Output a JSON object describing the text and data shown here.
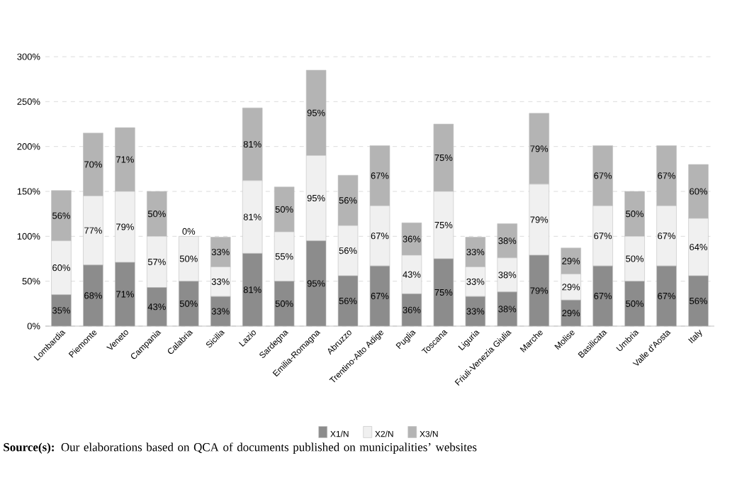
{
  "chart_data": {
    "type": "bar",
    "stacked": true,
    "grid": "y",
    "legend": "bottom",
    "categories": [
      "Lombardia",
      "Piemonte",
      "Veneto",
      "Campania",
      "Calabria",
      "Sicilia",
      "Lazio",
      "Sardegna",
      "Emilia-Romagna",
      "Abruzzo",
      "Trentino-Alto Adige",
      "Puglia",
      "Toscana",
      "Liguria",
      "Friuli-Venezia Giulia",
      "Marche",
      "Molise",
      "Basilicata",
      "Umbria",
      "Valle d'Aosta",
      "Italy"
    ],
    "series": [
      {
        "name": "X1/N",
        "color": "#8c8c8c",
        "values": [
          35,
          68,
          71,
          43,
          50,
          33,
          81,
          50,
          95,
          56,
          67,
          36,
          75,
          33,
          38,
          79,
          29,
          67,
          50,
          67,
          56
        ],
        "value_labels": [
          "35%",
          "68%",
          "71%",
          "43%",
          "50%",
          "33%",
          "81%",
          "50%",
          "95%",
          "56%",
          "67%",
          "36%",
          "75%",
          "33%",
          "38%",
          "79%",
          "29%",
          "67%",
          "50%",
          "67%",
          "56%"
        ]
      },
      {
        "name": "X2/N",
        "color": "#f0f0f0",
        "values": [
          60,
          77,
          79,
          57,
          50,
          33,
          81,
          55,
          95,
          56,
          67,
          43,
          75,
          33,
          38,
          79,
          29,
          67,
          50,
          67,
          64
        ],
        "value_labels": [
          "60%",
          "77%",
          "79%",
          "57%",
          "50%",
          "33%",
          "81%",
          "55%",
          "95%",
          "56%",
          "67%",
          "43%",
          "75%",
          "33%",
          "38%",
          "79%",
          "29%",
          "67%",
          "50%",
          "67%",
          "64%"
        ]
      },
      {
        "name": "X3/N",
        "color": "#b4b4b4",
        "values": [
          56,
          70,
          71,
          50,
          0,
          33,
          81,
          50,
          95,
          56,
          67,
          36,
          75,
          33,
          38,
          79,
          29,
          67,
          50,
          67,
          60
        ],
        "value_labels": [
          "56%",
          "70%",
          "71%",
          "50%",
          "0%",
          "33%",
          "81%",
          "50%",
          "95%",
          "56%",
          "67%",
          "36%",
          "75%",
          "33%",
          "38%",
          "79%",
          "29%",
          "67%",
          "50%",
          "67%",
          "60%"
        ]
      }
    ],
    "ylim": [
      0,
      300
    ],
    "yticks": [
      {
        "value": 0,
        "label": "0%"
      },
      {
        "value": 50,
        "label": "50%"
      },
      {
        "value": 100,
        "label": "100%"
      },
      {
        "value": 150,
        "label": "150%"
      },
      {
        "value": 200,
        "label": "200%"
      },
      {
        "value": 250,
        "label": "250%"
      },
      {
        "value": 300,
        "label": "300%"
      }
    ],
    "annotations": [
      "**Source(s):** Our elaborations based on QCA of documents published on municipalities’ websites"
    ]
  }
}
